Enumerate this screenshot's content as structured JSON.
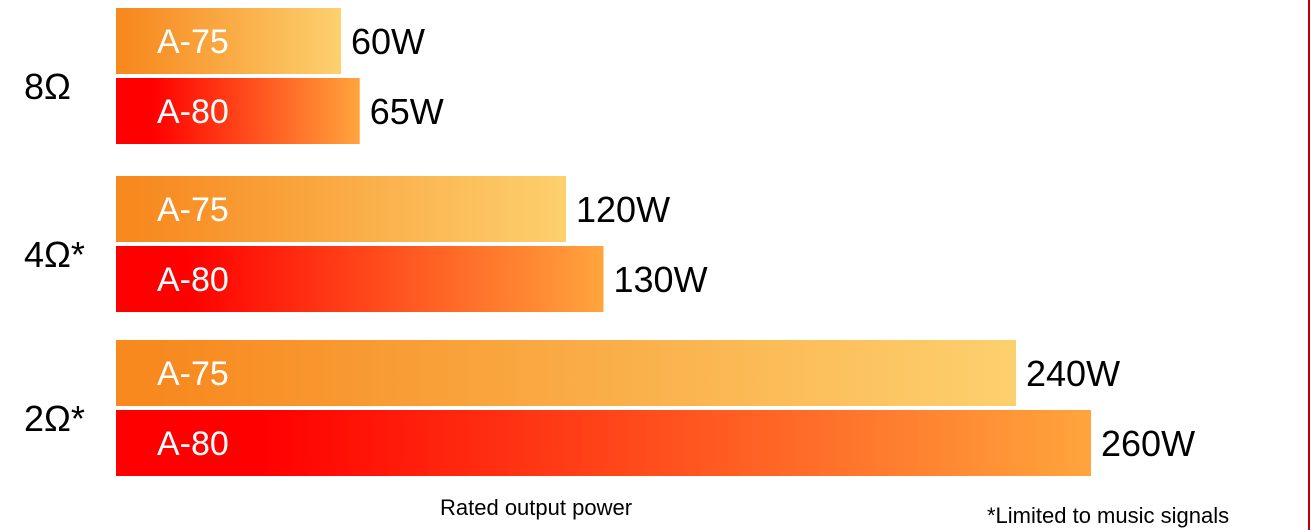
{
  "chart_data": {
    "type": "bar",
    "orientation": "horizontal",
    "categories": [
      "8Ω",
      "4Ω*",
      "2Ω*"
    ],
    "series": [
      {
        "name": "A-75",
        "values": [
          60,
          120,
          240
        ],
        "value_labels": [
          "60W",
          "120W",
          "240W"
        ],
        "gradient": [
          "#f7891f",
          "#fdd06e"
        ]
      },
      {
        "name": "A-80",
        "values": [
          65,
          130,
          260
        ],
        "value_labels": [
          "65W",
          "130W",
          "260W"
        ],
        "gradient": [
          "#ff0000",
          "#ffa53d"
        ]
      }
    ],
    "xlabel": "Rated output power",
    "ylabel": "",
    "unit": "W",
    "xlim": [
      0,
      260
    ],
    "grid": false,
    "legend": "none",
    "footnote": "*Limited to music signals"
  }
}
